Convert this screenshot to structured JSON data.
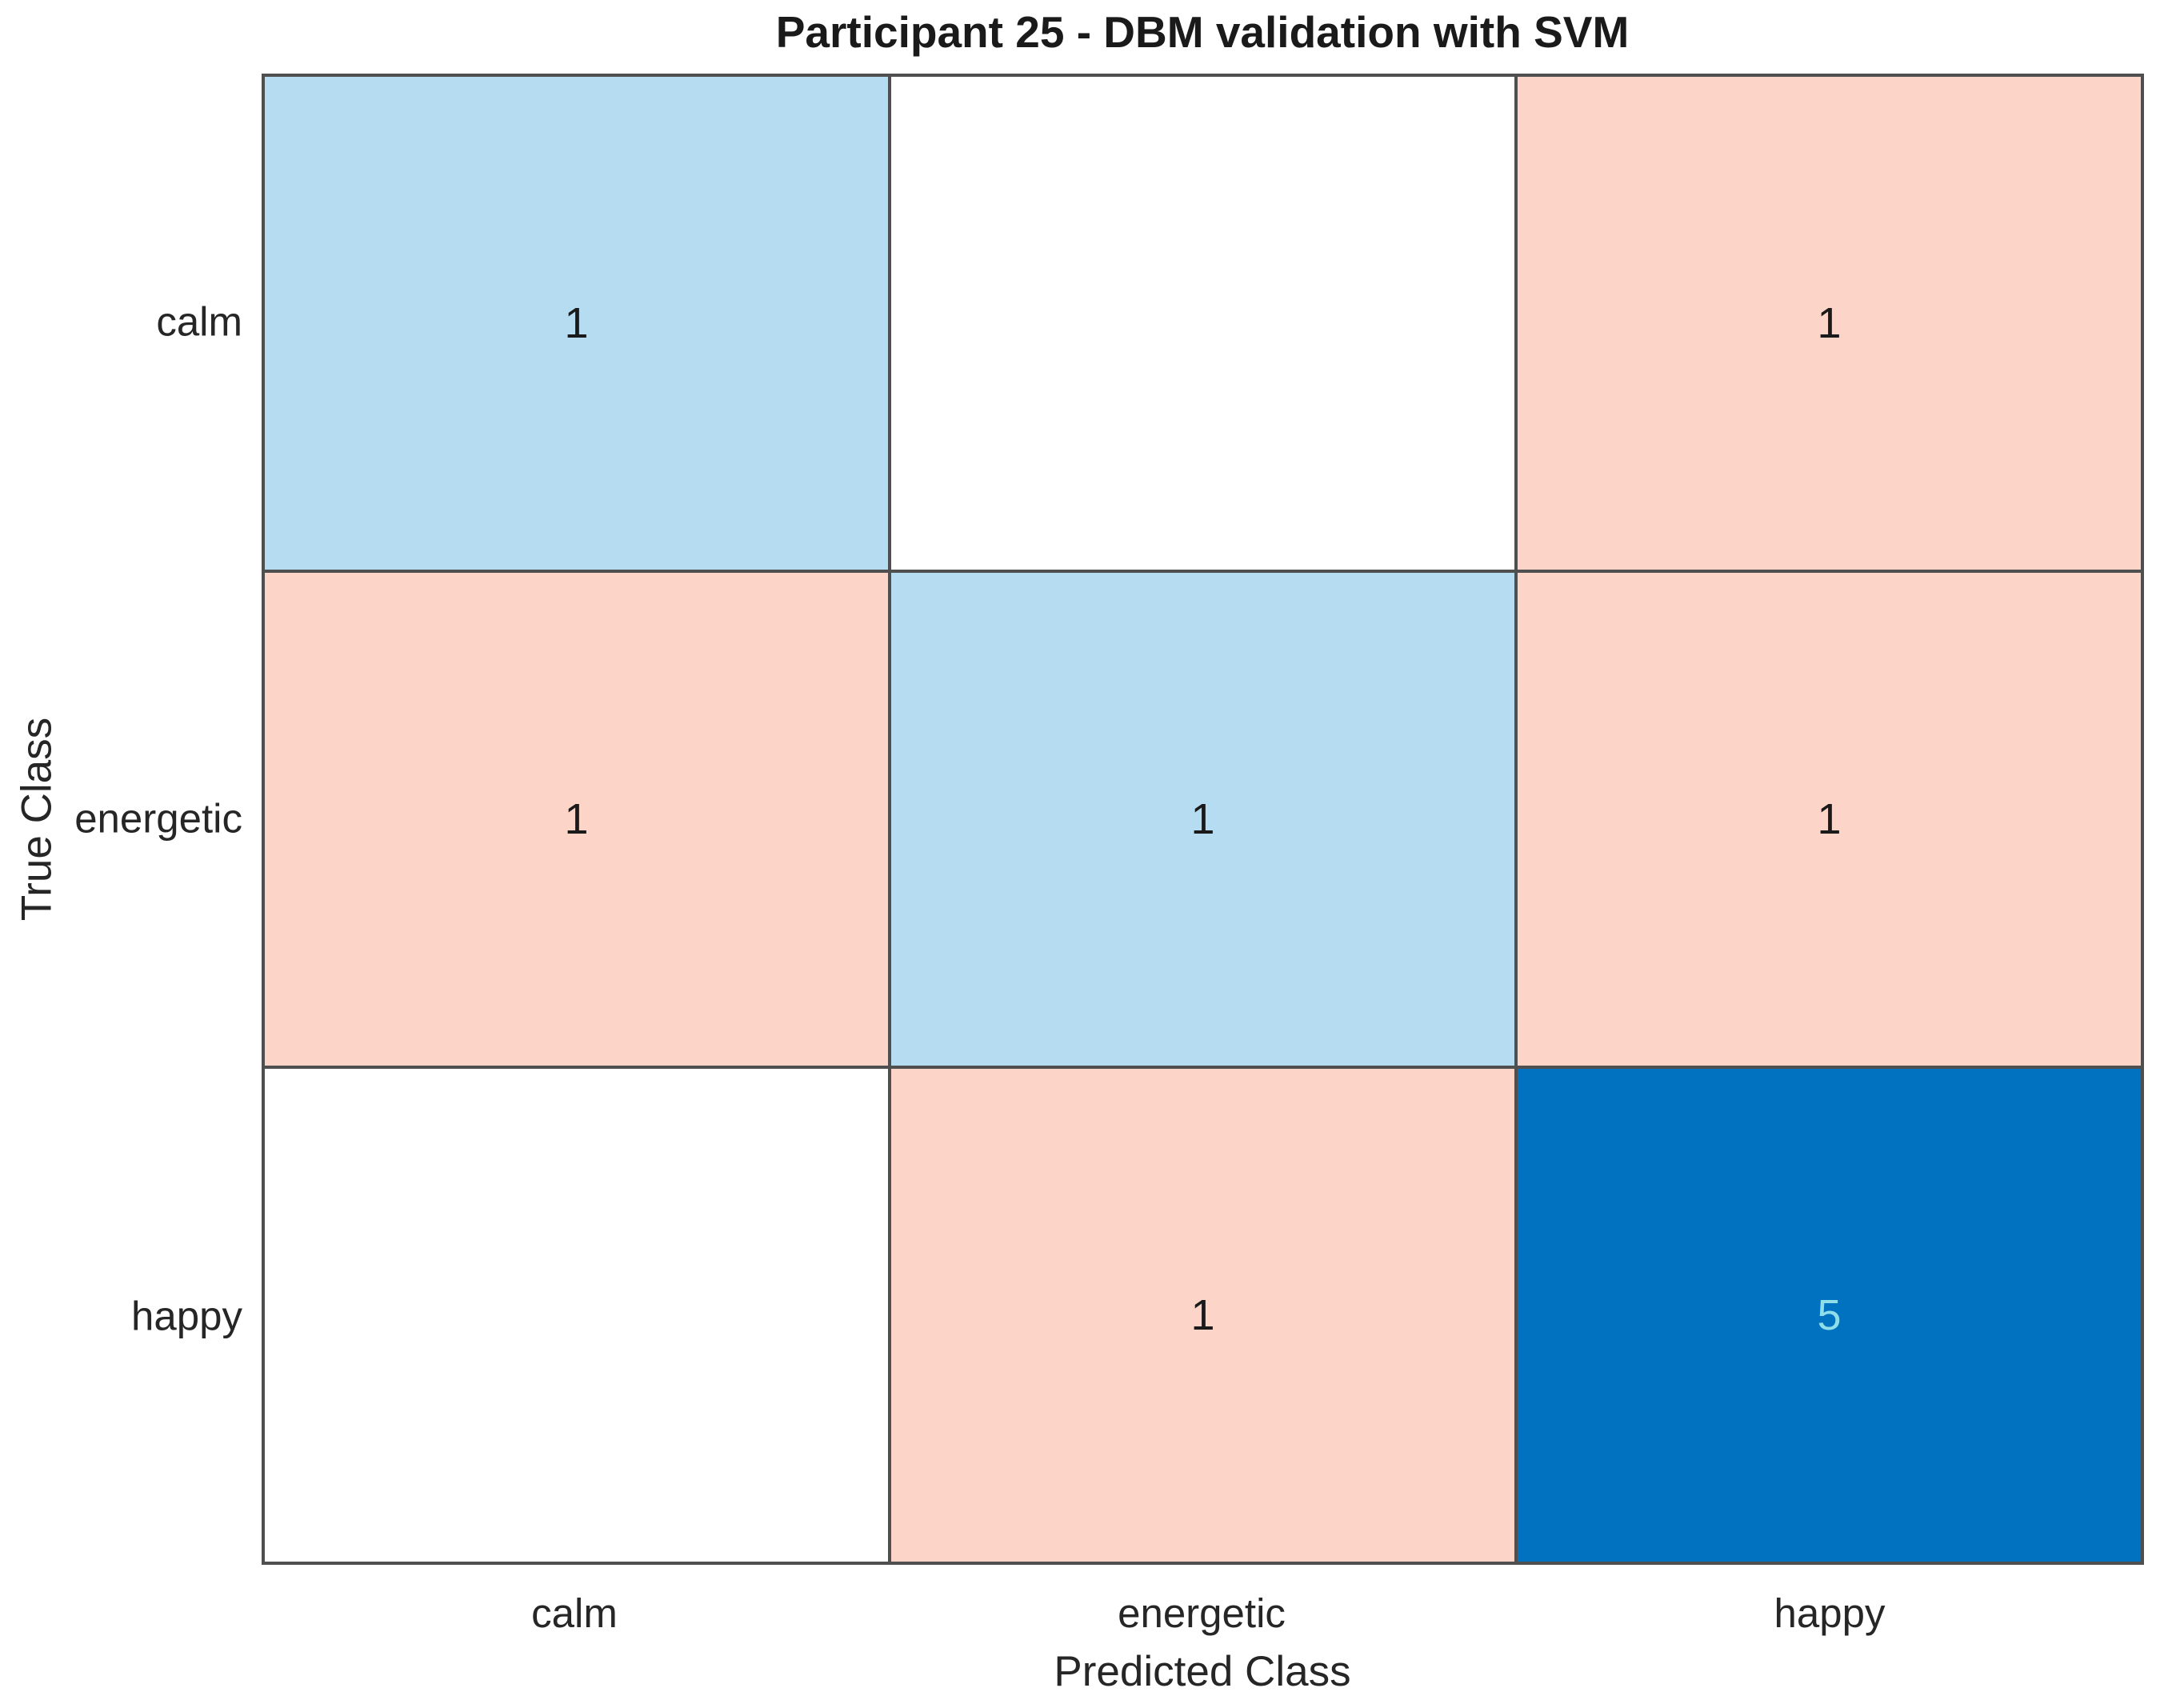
{
  "figure": {
    "title": "Participant 25 - DBM validation with SVM",
    "xlabel": "Predicted Class",
    "ylabel": "True Class"
  },
  "chart_data": {
    "type": "heatmap",
    "subtype": "confusion-matrix",
    "title": "Participant 25 - DBM validation with SVM",
    "xlabel": "Predicted Class",
    "ylabel": "True Class",
    "classes": [
      "calm",
      "energetic",
      "happy"
    ],
    "rows_are": "true class (top to bottom: calm, energetic, happy)",
    "columns_are": "predicted class (left to right: calm, energetic, happy)",
    "matrix": [
      [
        1,
        0,
        1
      ],
      [
        1,
        1,
        1
      ],
      [
        0,
        1,
        5
      ]
    ],
    "zero_cells_shown_blank": true,
    "cell_colors": [
      [
        "#B5DCF0",
        "#FFFFFF",
        "#FDD5C8"
      ],
      [
        "#FDD5C8",
        "#B5DCF0",
        "#FDD5C8"
      ],
      [
        "#FFFFFF",
        "#FDD5C8",
        "#0072C0"
      ]
    ],
    "value_text_colors": [
      [
        "#1A1A1A",
        "",
        "#1A1A1A"
      ],
      [
        "#1A1A1A",
        "#1A1A1A",
        "#1A1A1A"
      ],
      [
        "",
        "#1A1A1A",
        "#8FDEE9"
      ]
    ],
    "style": {
      "grid_line_color": "#4F4F4F",
      "label_color": "#262626",
      "title_color": "#1A1A1A",
      "diagonal_low_color": "#B5DCF0",
      "diagonal_high_color": "#0072C0",
      "offdiagonal_nonzero_color": "#FDD5C8",
      "zero_cell_color": "#FFFFFF"
    },
    "legend": "none",
    "grid": "on (cell borders)"
  }
}
